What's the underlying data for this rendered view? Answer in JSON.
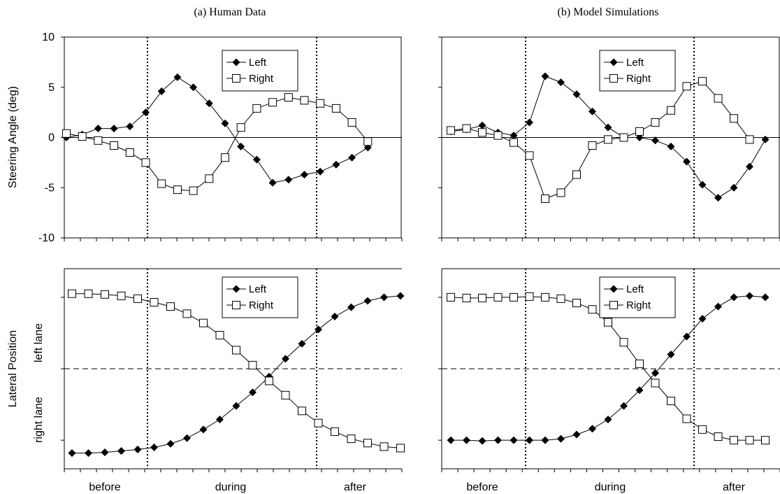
{
  "figure": {
    "titles": [
      "(a) Human Data",
      "(b) Model Simulations"
    ],
    "top_ylabel": "Steering Angle (deg)",
    "bottom_ylabel": "Lateral Position",
    "bottom_ytick_labels": [
      "left lane",
      "right lane"
    ],
    "phase_labels": [
      "before",
      "during",
      "after"
    ]
  },
  "chart_data": [
    {
      "type": "line",
      "title": "(a) Human Data",
      "ylabel": "Steering Angle (deg)",
      "ylim": [
        -10,
        10
      ],
      "yticks": [
        -10,
        -5,
        0,
        5,
        10
      ],
      "xlim": [
        0,
        21
      ],
      "phase_boundaries": [
        5,
        16
      ],
      "phases": [
        "before",
        "during",
        "after"
      ],
      "x": [
        0,
        1,
        2,
        3,
        4,
        5,
        6,
        7,
        8,
        9,
        10,
        11,
        12,
        13,
        14,
        15,
        16,
        17,
        18,
        19,
        20
      ],
      "legend": "top-center",
      "series": [
        {
          "name": "Left",
          "marker": "filled-diamond",
          "values": [
            0.0,
            0.3,
            0.9,
            0.9,
            1.1,
            2.5,
            4.6,
            6.0,
            5.0,
            3.4,
            1.4,
            -0.9,
            -2.2,
            -4.5,
            -4.2,
            -3.7,
            -3.4,
            -2.7,
            -2.0,
            -1.0,
            null
          ]
        },
        {
          "name": "Right",
          "marker": "open-square",
          "values": [
            0.4,
            0.1,
            -0.3,
            -0.8,
            -1.5,
            -2.5,
            -4.6,
            -5.2,
            -5.3,
            -4.1,
            -2.0,
            1.0,
            2.9,
            3.5,
            4.0,
            3.7,
            3.4,
            2.9,
            1.5,
            -0.4,
            null
          ]
        }
      ]
    },
    {
      "type": "line",
      "title": "(b) Model Simulations",
      "ylabel": "Steering Angle (deg)",
      "ylim": [
        -10,
        10
      ],
      "yticks": [
        -10,
        -5,
        0,
        5,
        10
      ],
      "xlim": [
        0,
        21
      ],
      "phase_boundaries": [
        5,
        16
      ],
      "phases": [
        "before",
        "during",
        "after"
      ],
      "x": [
        0,
        1,
        2,
        3,
        4,
        5,
        6,
        7,
        8,
        9,
        10,
        11,
        12,
        13,
        14,
        15,
        16,
        17,
        18,
        19,
        20
      ],
      "legend": "top-center",
      "series": [
        {
          "name": "Left",
          "marker": "filled-diamond",
          "values": [
            0.6,
            0.8,
            1.2,
            0.5,
            0.2,
            1.5,
            6.1,
            5.5,
            4.3,
            2.6,
            1.0,
            0.0,
            0.0,
            -0.3,
            -0.9,
            -2.4,
            -4.7,
            -6.0,
            -5.0,
            -2.9,
            -0.2
          ]
        },
        {
          "name": "Right",
          "marker": "open-square",
          "values": [
            0.7,
            0.9,
            0.5,
            0.2,
            -0.5,
            -1.8,
            -6.1,
            -5.5,
            -3.7,
            -0.8,
            -0.2,
            0.0,
            0.6,
            1.5,
            2.7,
            5.1,
            5.6,
            3.9,
            1.9,
            -0.2,
            null
          ]
        }
      ]
    },
    {
      "type": "line",
      "title": "(a) Human Data",
      "ylabel": "Lateral Position",
      "ytick_labels": [
        "right lane",
        "left lane"
      ],
      "ylim": [
        -1.4,
        1.4
      ],
      "xlim": [
        0,
        21
      ],
      "phase_boundaries": [
        5,
        16
      ],
      "phases": [
        "before",
        "during",
        "after"
      ],
      "x": [
        0,
        1,
        2,
        3,
        4,
        5,
        6,
        7,
        8,
        9,
        10,
        11,
        12,
        13,
        14,
        15,
        16,
        17,
        18,
        19,
        20
      ],
      "legend": "top-center",
      "series": [
        {
          "name": "Left",
          "marker": "filled-diamond",
          "values": [
            -1.18,
            -1.18,
            -1.17,
            -1.15,
            -1.13,
            -1.1,
            -1.05,
            -0.97,
            -0.85,
            -0.71,
            -0.52,
            -0.33,
            -0.11,
            0.14,
            0.35,
            0.55,
            0.73,
            0.86,
            0.95,
            1.0,
            1.02
          ]
        },
        {
          "name": "Right",
          "marker": "open-square",
          "values": [
            1.05,
            1.05,
            1.04,
            1.02,
            0.98,
            0.93,
            0.87,
            0.77,
            0.64,
            0.47,
            0.26,
            0.05,
            -0.17,
            -0.37,
            -0.59,
            -0.76,
            -0.88,
            -0.98,
            -1.04,
            -1.09,
            -1.11
          ]
        }
      ]
    },
    {
      "type": "line",
      "title": "(b) Model Simulations",
      "ylabel": "Lateral Position",
      "ytick_labels": [
        "right lane",
        "left lane"
      ],
      "ylim": [
        -1.4,
        1.4
      ],
      "xlim": [
        0,
        21
      ],
      "phase_boundaries": [
        5,
        16
      ],
      "phases": [
        "before",
        "during",
        "after"
      ],
      "x": [
        0,
        1,
        2,
        3,
        4,
        5,
        6,
        7,
        8,
        9,
        10,
        11,
        12,
        13,
        14,
        15,
        16,
        17,
        18,
        19,
        20
      ],
      "legend": "top-center",
      "series": [
        {
          "name": "Left",
          "marker": "filled-diamond",
          "values": [
            -1.0,
            -1.0,
            -1.01,
            -1.0,
            -1.0,
            -1.0,
            -1.0,
            -0.98,
            -0.92,
            -0.84,
            -0.71,
            -0.52,
            -0.3,
            -0.06,
            0.2,
            0.45,
            0.7,
            0.87,
            1.0,
            1.02,
            1.0
          ]
        },
        {
          "name": "Right",
          "marker": "open-square",
          "values": [
            1.0,
            0.99,
            0.99,
            1.0,
            1.0,
            1.01,
            1.0,
            0.98,
            0.92,
            0.83,
            0.65,
            0.37,
            0.07,
            -0.2,
            -0.45,
            -0.7,
            -0.85,
            -0.95,
            -1.0,
            -1.0,
            -1.0
          ]
        }
      ]
    }
  ]
}
